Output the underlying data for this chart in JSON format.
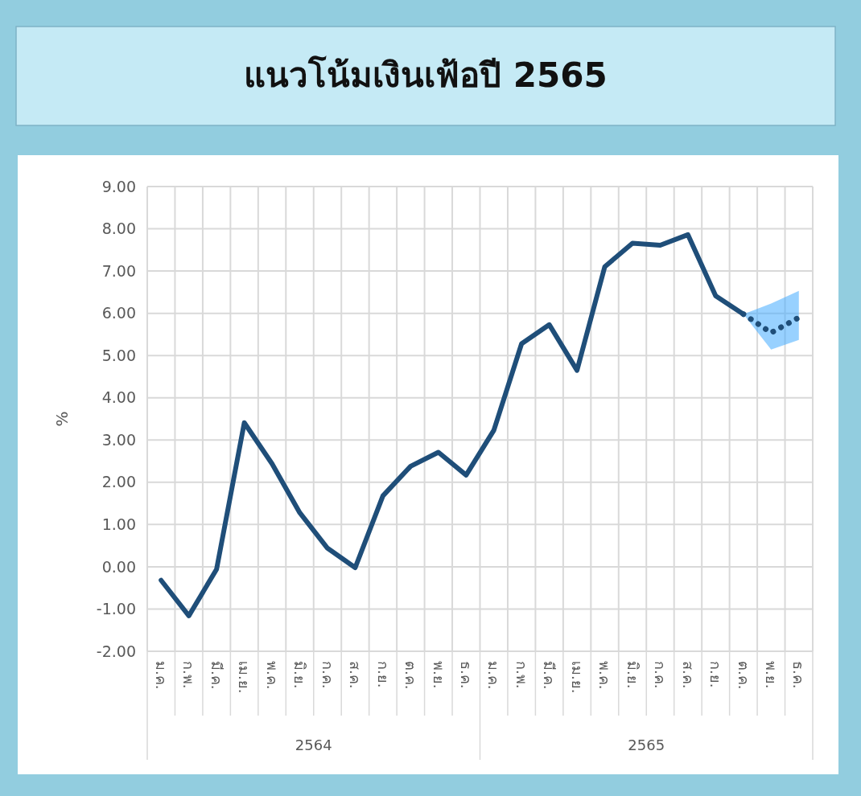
{
  "chart_data": {
    "type": "line",
    "title": "แนวโน้มเงินเฟ้อปี 2565",
    "ylabel": "%",
    "categories": [
      "ม.ค.",
      "ก.พ.",
      "มี.ค.",
      "เม.ย.",
      "พ.ค.",
      "มิ.ย.",
      "ก.ค.",
      "ส.ค.",
      "ก.ย.",
      "ต.ค.",
      "พ.ย.",
      "ธ.ค.",
      "ม.ค.",
      "ก.พ.",
      "มี.ค.",
      "เม.ย.",
      "พ.ค.",
      "มิ.ย.",
      "ก.ค.",
      "ส.ค.",
      "ก.ย.",
      "ต.ค.",
      "พ.ย.",
      "ธ.ค."
    ],
    "series": [
      {
        "color": "#1f4e79",
        "line_style": "solid",
        "values": [
          -0.32,
          -1.16,
          -0.06,
          3.41,
          2.44,
          1.28,
          0.44,
          -0.02,
          1.68,
          2.38,
          2.71,
          2.17,
          3.23,
          5.28,
          5.73,
          4.65,
          7.1,
          7.66,
          7.61,
          7.86,
          6.41,
          5.98,
          null,
          null
        ]
      },
      {
        "color": "#1f4e79",
        "line_style": "dotted",
        "values": [
          null,
          null,
          null,
          null,
          null,
          null,
          null,
          null,
          null,
          null,
          null,
          null,
          null,
          null,
          null,
          null,
          null,
          null,
          null,
          null,
          null,
          5.98,
          5.54,
          5.9
        ],
        "lower": [
          null,
          null,
          null,
          null,
          null,
          null,
          null,
          null,
          null,
          null,
          null,
          null,
          null,
          null,
          null,
          null,
          null,
          null,
          null,
          null,
          null,
          5.98,
          5.14,
          5.37
        ],
        "upper": [
          null,
          null,
          null,
          null,
          null,
          null,
          null,
          null,
          null,
          null,
          null,
          null,
          null,
          null,
          null,
          null,
          null,
          null,
          null,
          null,
          null,
          5.98,
          6.23,
          6.53
        ]
      }
    ],
    "ylim": [
      -2,
      9
    ],
    "yticks": [
      {
        "value": -2,
        "label": "-2.00"
      },
      {
        "value": -1,
        "label": "-1.00"
      },
      {
        "value": 0,
        "label": "0.00"
      },
      {
        "value": 1,
        "label": "1.00"
      },
      {
        "value": 2,
        "label": "2.00"
      },
      {
        "value": 3,
        "label": "3.00"
      },
      {
        "value": 4,
        "label": "4.00"
      },
      {
        "value": 5,
        "label": "5.00"
      },
      {
        "value": 6,
        "label": "6.00"
      },
      {
        "value": 7,
        "label": "7.00"
      },
      {
        "value": 8,
        "label": "8.00"
      },
      {
        "value": 9,
        "label": "9.00"
      }
    ],
    "grid": true,
    "marker": "none",
    "annotations": [
      "2564",
      "2565"
    ]
  }
}
